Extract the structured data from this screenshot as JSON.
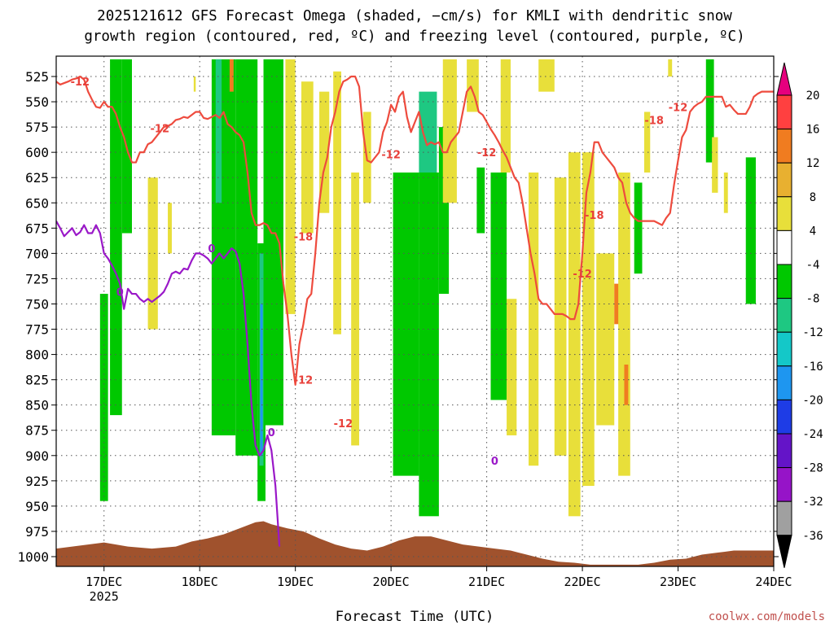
{
  "chart_data": {
    "type": "heatmap",
    "title_line1": "2025121612 GFS Forecast Omega (shaded, −cm/s) for KMLI with dendritic snow",
    "title_line2": "growth region (contoured, red, ºC) and freezing level (contoured, purple, ºC)",
    "xlabel": "Forecast Time (UTC)",
    "credit": "coolwx.com/models",
    "x_ticks": [
      "17DEC",
      "18DEC",
      "19DEC",
      "20DEC",
      "21DEC",
      "22DEC",
      "23DEC",
      "24DEC"
    ],
    "x_tick_values": [
      24,
      48,
      72,
      96,
      120,
      144,
      168,
      192
    ],
    "x_sublabel": "2025",
    "x_range": [
      12,
      192
    ],
    "y_ticks": [
      525,
      550,
      575,
      600,
      625,
      650,
      675,
      700,
      725,
      750,
      775,
      800,
      825,
      850,
      875,
      900,
      925,
      950,
      975,
      1000
    ],
    "y_range": [
      508,
      1008
    ],
    "y_scale": "pressure (inverted, hPa)",
    "grid": true,
    "colorbar": {
      "labels": [
        "20",
        "16",
        "12",
        "8",
        "4",
        "-4",
        "-8",
        "-12",
        "-16",
        "-20",
        "-24",
        "-28",
        "-32",
        "-36"
      ],
      "colors": [
        "#e6007e",
        "#ff4040",
        "#f07c20",
        "#e8b030",
        "#e8df3a",
        "#ffffff",
        "#00c800",
        "#1ec882",
        "#14c8c8",
        "#1e96f0",
        "#1e3ce6",
        "#6414c8",
        "#9614c8",
        "#a0a0a0",
        "#000000"
      ]
    },
    "shaded_features": [
      {
        "x0": 23.0,
        "x1": 25.0,
        "p0": 740,
        "p1": 945,
        "color": "#00c800"
      },
      {
        "x0": 25.5,
        "x1": 28.5,
        "p0": 508,
        "p1": 860,
        "color": "#00c800"
      },
      {
        "x0": 28.5,
        "x1": 31.0,
        "p0": 508,
        "p1": 680,
        "color": "#00c800"
      },
      {
        "x0": 35.0,
        "x1": 37.5,
        "p0": 625,
        "p1": 775,
        "color": "#e8df3a"
      },
      {
        "x0": 40.0,
        "x1": 41.0,
        "p0": 650,
        "p1": 700,
        "color": "#e8df3a"
      },
      {
        "x0": 46.5,
        "x1": 47.0,
        "p0": 525,
        "p1": 540,
        "color": "#e8df3a"
      },
      {
        "x0": 51.0,
        "x1": 57.0,
        "p0": 508,
        "p1": 880,
        "color": "#00c800"
      },
      {
        "x0": 52.0,
        "x1": 53.5,
        "p0": 508,
        "p1": 650,
        "color": "#1ec882"
      },
      {
        "x0": 55.5,
        "x1": 56.5,
        "p0": 508,
        "p1": 540,
        "color": "#f07c20"
      },
      {
        "x0": 57.0,
        "x1": 62.5,
        "p0": 508,
        "p1": 900,
        "color": "#00c800"
      },
      {
        "x0": 62.5,
        "x1": 64.5,
        "p0": 690,
        "p1": 945,
        "color": "#00c800"
      },
      {
        "x0": 63.0,
        "x1": 64.0,
        "p0": 700,
        "p1": 910,
        "color": "#1ec882"
      },
      {
        "x0": 63.2,
        "x1": 63.8,
        "p0": 750,
        "p1": 900,
        "color": "#1e96f0"
      },
      {
        "x0": 64.0,
        "x1": 69.0,
        "p0": 508,
        "p1": 870,
        "color": "#00c800"
      },
      {
        "x0": 69.5,
        "x1": 72.0,
        "p0": 508,
        "p1": 760,
        "color": "#e8df3a"
      },
      {
        "x0": 73.5,
        "x1": 76.5,
        "p0": 530,
        "p1": 680,
        "color": "#e8df3a"
      },
      {
        "x0": 78.0,
        "x1": 80.5,
        "p0": 540,
        "p1": 660,
        "color": "#e8df3a"
      },
      {
        "x0": 81.5,
        "x1": 83.5,
        "p0": 520,
        "p1": 780,
        "color": "#e8df3a"
      },
      {
        "x0": 86.0,
        "x1": 88.0,
        "p0": 620,
        "p1": 890,
        "color": "#e8df3a"
      },
      {
        "x0": 89.0,
        "x1": 91.0,
        "p0": 560,
        "p1": 650,
        "color": "#e8df3a"
      },
      {
        "x0": 96.5,
        "x1": 103.0,
        "p0": 620,
        "p1": 920,
        "color": "#00c800"
      },
      {
        "x0": 103.0,
        "x1": 107.5,
        "p0": 540,
        "p1": 620,
        "color": "#1ec882"
      },
      {
        "x0": 103.0,
        "x1": 108.0,
        "p0": 620,
        "p1": 960,
        "color": "#00c800"
      },
      {
        "x0": 108.0,
        "x1": 110.5,
        "p0": 575,
        "p1": 740,
        "color": "#00c800"
      },
      {
        "x0": 109.0,
        "x1": 112.5,
        "p0": 508,
        "p1": 650,
        "color": "#e8df3a"
      },
      {
        "x0": 115.0,
        "x1": 118.0,
        "p0": 508,
        "p1": 560,
        "color": "#e8df3a"
      },
      {
        "x0": 117.5,
        "x1": 119.5,
        "p0": 615,
        "p1": 680,
        "color": "#00c800"
      },
      {
        "x0": 121.0,
        "x1": 125.0,
        "p0": 620,
        "p1": 845,
        "color": "#00c800"
      },
      {
        "x0": 123.5,
        "x1": 126.0,
        "p0": 508,
        "p1": 620,
        "color": "#e8df3a"
      },
      {
        "x0": 125.0,
        "x1": 127.5,
        "p0": 745,
        "p1": 880,
        "color": "#e8df3a"
      },
      {
        "x0": 130.5,
        "x1": 133.0,
        "p0": 620,
        "p1": 910,
        "color": "#e8df3a"
      },
      {
        "x0": 133.0,
        "x1": 137.0,
        "p0": 508,
        "p1": 540,
        "color": "#e8df3a"
      },
      {
        "x0": 137.0,
        "x1": 140.0,
        "p0": 625,
        "p1": 900,
        "color": "#e8df3a"
      },
      {
        "x0": 140.5,
        "x1": 143.5,
        "p0": 600,
        "p1": 960,
        "color": "#e8df3a"
      },
      {
        "x0": 144.0,
        "x1": 147.0,
        "p0": 600,
        "p1": 930,
        "color": "#e8df3a"
      },
      {
        "x0": 147.5,
        "x1": 152.0,
        "p0": 700,
        "p1": 870,
        "color": "#e8df3a"
      },
      {
        "x0": 152.0,
        "x1": 153.5,
        "p0": 730,
        "p1": 770,
        "color": "#f07c20"
      },
      {
        "x0": 153.0,
        "x1": 156.0,
        "p0": 620,
        "p1": 920,
        "color": "#e8df3a"
      },
      {
        "x0": 154.5,
        "x1": 155.5,
        "p0": 810,
        "p1": 850,
        "color": "#f07c20"
      },
      {
        "x0": 157.0,
        "x1": 159.0,
        "p0": 630,
        "p1": 720,
        "color": "#00c800"
      },
      {
        "x0": 159.5,
        "x1": 161.0,
        "p0": 560,
        "p1": 620,
        "color": "#e8df3a"
      },
      {
        "x0": 165.5,
        "x1": 166.5,
        "p0": 508,
        "p1": 525,
        "color": "#e8df3a"
      },
      {
        "x0": 175.0,
        "x1": 177.0,
        "p0": 508,
        "p1": 610,
        "color": "#00c800"
      },
      {
        "x0": 176.5,
        "x1": 178.0,
        "p0": 585,
        "p1": 640,
        "color": "#e8df3a"
      },
      {
        "x0": 179.5,
        "x1": 180.5,
        "p0": 620,
        "p1": 660,
        "color": "#e8df3a"
      },
      {
        "x0": 185.0,
        "x1": 187.5,
        "p0": 605,
        "p1": 750,
        "color": "#00c800"
      }
    ],
    "red_contour_label": "-12",
    "red_label_alt": "-18",
    "red_contours": [
      {
        "name": "-12",
        "x": [
          12,
          13,
          15,
          16,
          17,
          18,
          19,
          20,
          21,
          22,
          23,
          24,
          25,
          26,
          27,
          28,
          29,
          30,
          31,
          32,
          33,
          34,
          35,
          36,
          37,
          38,
          39,
          40,
          41,
          42,
          43,
          44,
          45,
          46,
          47,
          48,
          49,
          50,
          51,
          52,
          53,
          54,
          55,
          56,
          57,
          58,
          59,
          60,
          61,
          62,
          63,
          64,
          65,
          66,
          67,
          68,
          69,
          70,
          71,
          72,
          73,
          74,
          75,
          76,
          77,
          78,
          79,
          80,
          81,
          82,
          83,
          84,
          85,
          86,
          87,
          88,
          89,
          90,
          91,
          92,
          93,
          94,
          95,
          96,
          97,
          98,
          99,
          100,
          101,
          102,
          103,
          104,
          105,
          106,
          107,
          108,
          109,
          110,
          111,
          112,
          113,
          114,
          115,
          116,
          117,
          118,
          119,
          120,
          121,
          122,
          123,
          124,
          125,
          126,
          127,
          128,
          129,
          130,
          131,
          132,
          133,
          134,
          135,
          136,
          137,
          138,
          139,
          140,
          141,
          142,
          143,
          144,
          145,
          146,
          147,
          148,
          149,
          150,
          151,
          152,
          153,
          154,
          155,
          156,
          157,
          158,
          159,
          160,
          161,
          162,
          163,
          164,
          165,
          166,
          167,
          168,
          169,
          170,
          171,
          172,
          173,
          174,
          175,
          176,
          177,
          178,
          179,
          180,
          181,
          182,
          183,
          184,
          185,
          186,
          187,
          188,
          189,
          190,
          191,
          192
        ],
        "p": [
          530,
          533,
          530,
          528,
          527,
          525,
          528,
          540,
          548,
          555,
          556,
          550,
          555,
          555,
          562,
          575,
          585,
          600,
          610,
          610,
          600,
          600,
          592,
          590,
          585,
          580,
          575,
          574,
          572,
          568,
          567,
          565,
          566,
          563,
          560,
          560,
          566,
          567,
          565,
          563,
          566,
          560,
          572,
          575,
          580,
          583,
          590,
          620,
          660,
          672,
          672,
          670,
          672,
          680,
          680,
          690,
          730,
          760,
          800,
          830,
          790,
          770,
          745,
          740,
          700,
          650,
          620,
          605,
          575,
          560,
          540,
          530,
          528,
          525,
          525,
          535,
          580,
          608,
          610,
          605,
          600,
          580,
          570,
          553,
          560,
          545,
          540,
          565,
          580,
          570,
          560,
          580,
          593,
          590,
          592,
          590,
          600,
          600,
          590,
          585,
          580,
          560,
          540,
          535,
          545,
          560,
          563,
          570,
          577,
          583,
          590,
          598,
          605,
          615,
          625,
          630,
          650,
          675,
          700,
          720,
          745,
          750,
          750,
          755,
          760,
          760,
          760,
          762,
          765,
          765,
          750,
          700,
          640,
          620,
          590,
          590,
          600,
          605,
          610,
          615,
          625,
          630,
          650,
          660,
          665,
          668,
          668,
          668,
          668,
          668,
          670,
          672,
          665,
          660,
          632,
          608,
          585,
          578,
          560,
          555,
          552,
          550,
          545,
          545,
          545,
          545,
          545,
          555,
          553,
          558,
          562,
          562,
          562,
          555,
          545,
          542,
          540,
          540,
          540,
          540
        ]
      }
    ],
    "purple_contour_label": "0",
    "purple_contours": [
      {
        "name": "0",
        "x": [
          12,
          13,
          14,
          15,
          16,
          17,
          18,
          19,
          20,
          21,
          22,
          23,
          24,
          25,
          26,
          27,
          28,
          29,
          30,
          31,
          32,
          33,
          34,
          35,
          36,
          37,
          38,
          39,
          40,
          41,
          42,
          43,
          44,
          45,
          46,
          47,
          48,
          49,
          50,
          51,
          52,
          53,
          54,
          55,
          56,
          57,
          58,
          59,
          60,
          61,
          62,
          63,
          64,
          65,
          66,
          67,
          68
        ],
        "p": [
          668,
          675,
          683,
          679,
          675,
          682,
          679,
          672,
          680,
          680,
          672,
          680,
          700,
          705,
          712,
          720,
          730,
          755,
          735,
          740,
          740,
          745,
          748,
          745,
          748,
          745,
          742,
          738,
          730,
          720,
          718,
          720,
          715,
          716,
          707,
          700,
          700,
          702,
          705,
          710,
          705,
          700,
          705,
          700,
          695,
          698,
          710,
          740,
          790,
          850,
          890,
          900,
          895,
          880,
          895,
          930,
          990
        ]
      }
    ],
    "terrain_color": "#a0522d",
    "terrain_surface_pressure": {
      "x": [
        12,
        24,
        30,
        36,
        42,
        46,
        50,
        54,
        58,
        62,
        64,
        66,
        70,
        74,
        78,
        82,
        86,
        90,
        94,
        98,
        102,
        106,
        110,
        114,
        118,
        122,
        126,
        130,
        134,
        138,
        142,
        146,
        150,
        154,
        158,
        162,
        166,
        170,
        174,
        178,
        182,
        186,
        192
      ],
      "p": [
        992,
        986,
        990,
        992,
        990,
        985,
        982,
        978,
        972,
        966,
        965,
        968,
        972,
        975,
        982,
        988,
        992,
        994,
        990,
        984,
        980,
        980,
        984,
        988,
        990,
        992,
        994,
        998,
        1002,
        1005,
        1006,
        1008,
        1008,
        1008,
        1008,
        1006,
        1003,
        1002,
        998,
        996,
        994,
        994,
        994
      ]
    }
  }
}
